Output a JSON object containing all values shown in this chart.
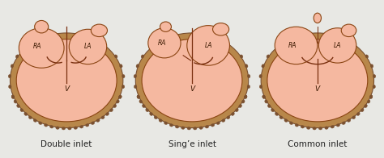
{
  "background_color": "#e8e8e4",
  "labels": [
    "Double inlet",
    "Sing’e inlet",
    "Common inlet"
  ],
  "label_fontsize": 7.5,
  "heart_fill": "#f5b8a0",
  "heart_edge": "#8B4513",
  "muscle_outer": "#b8874a",
  "muscle_inner": "#c89858",
  "muscle_edge": "#7a5030",
  "ra_label": "RA",
  "la_label": "LA",
  "v_label": "V",
  "label_color": "#3a1800",
  "valve_color": "#7a3010",
  "septum_color": "#7a3010",
  "title_color": "#222222",
  "lw_edge": 0.8
}
